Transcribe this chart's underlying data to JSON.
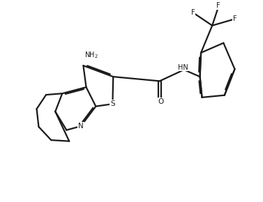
{
  "bg": "#ffffff",
  "bc": "#1a1a1a",
  "lw": 1.6,
  "fs_label": 7.5,
  "figsize": [
    3.77,
    2.9
  ],
  "dpi": 100,
  "xlim": [
    -0.5,
    10.5
  ],
  "ylim": [
    -0.5,
    8.2
  ]
}
